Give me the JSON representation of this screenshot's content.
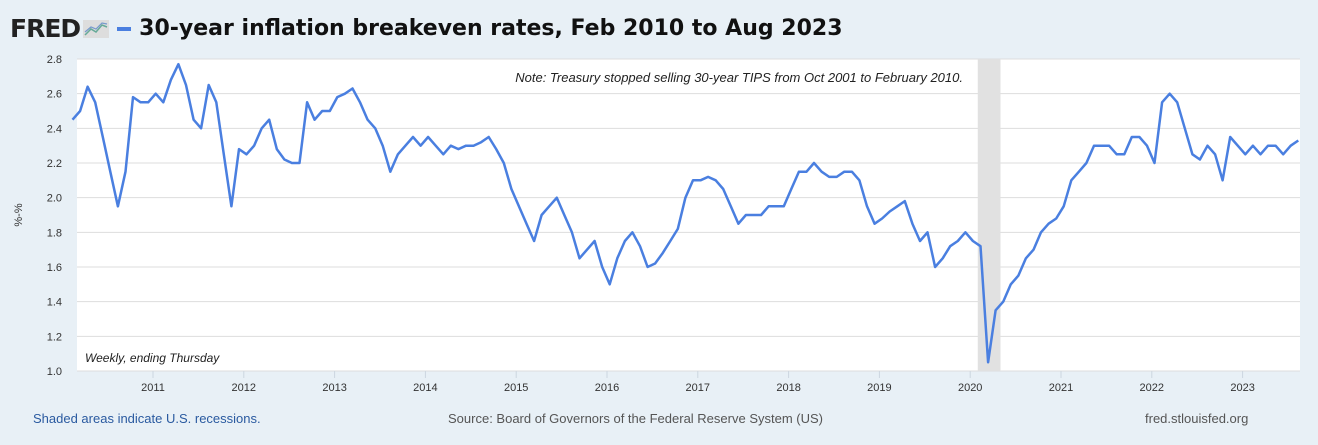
{
  "header": {
    "logo": "FRED",
    "title": "30-year inflation breakeven rates, Feb 2010 to Aug 2023"
  },
  "footer": {
    "recessions": "Shaded areas indicate U.S. recessions.",
    "source": "Source: Board of Governors of the Federal Reserve System (US)",
    "site": "fred.stlouisfed.org"
  },
  "colors": {
    "line": "#4a7fe0",
    "recession": "#e1e1e1"
  },
  "chart_data": {
    "type": "line",
    "title": "30-year inflation breakeven rates, Feb 2010 to Aug 2023",
    "ylabel": "%-%",
    "ylim": [
      1.0,
      2.8
    ],
    "yticks": [
      "1.0",
      "1.2",
      "1.4",
      "1.6",
      "1.8",
      "2.0",
      "2.2",
      "2.4",
      "2.6",
      "2.8"
    ],
    "xticks": [
      "2011",
      "2012",
      "2013",
      "2014",
      "2015",
      "2016",
      "2017",
      "2018",
      "2019",
      "2020",
      "2021",
      "2022",
      "2023"
    ],
    "note": "Note: Treasury stopped selling 30-year TIPS from Oct 2001 to February 2010.",
    "frequency": "Weekly, ending Thursday",
    "recession": [
      "2020-02",
      "2020-04"
    ],
    "start": "2010-02",
    "frequency_of_values": "monthly (approx.)",
    "values": [
      2.45,
      2.5,
      2.64,
      2.55,
      2.35,
      2.15,
      1.95,
      2.15,
      2.58,
      2.55,
      2.55,
      2.6,
      2.55,
      2.68,
      2.77,
      2.65,
      2.45,
      2.4,
      2.65,
      2.55,
      2.25,
      1.95,
      2.28,
      2.25,
      2.3,
      2.4,
      2.45,
      2.28,
      2.22,
      2.2,
      2.2,
      2.55,
      2.45,
      2.5,
      2.5,
      2.58,
      2.6,
      2.63,
      2.55,
      2.45,
      2.4,
      2.3,
      2.15,
      2.25,
      2.3,
      2.35,
      2.3,
      2.35,
      2.3,
      2.25,
      2.3,
      2.28,
      2.3,
      2.3,
      2.32,
      2.35,
      2.28,
      2.2,
      2.05,
      1.95,
      1.85,
      1.75,
      1.9,
      1.95,
      2.0,
      1.9,
      1.8,
      1.65,
      1.7,
      1.75,
      1.6,
      1.5,
      1.65,
      1.75,
      1.8,
      1.72,
      1.6,
      1.62,
      1.68,
      1.75,
      1.82,
      2.0,
      2.1,
      2.1,
      2.12,
      2.1,
      2.05,
      1.95,
      1.85,
      1.9,
      1.9,
      1.9,
      1.95,
      1.95,
      1.95,
      2.05,
      2.15,
      2.15,
      2.2,
      2.15,
      2.12,
      2.12,
      2.15,
      2.15,
      2.1,
      1.95,
      1.85,
      1.88,
      1.92,
      1.95,
      1.98,
      1.85,
      1.75,
      1.8,
      1.6,
      1.65,
      1.72,
      1.75,
      1.8,
      1.75,
      1.72,
      1.05,
      1.35,
      1.4,
      1.5,
      1.55,
      1.65,
      1.7,
      1.8,
      1.85,
      1.88,
      1.95,
      2.1,
      2.15,
      2.2,
      2.3,
      2.3,
      2.3,
      2.25,
      2.25,
      2.35,
      2.35,
      2.3,
      2.2,
      2.55,
      2.6,
      2.55,
      2.4,
      2.25,
      2.22,
      2.3,
      2.25,
      2.1,
      2.35,
      2.3,
      2.25,
      2.3,
      2.25,
      2.3,
      2.3,
      2.25,
      2.3,
      2.33
    ]
  }
}
